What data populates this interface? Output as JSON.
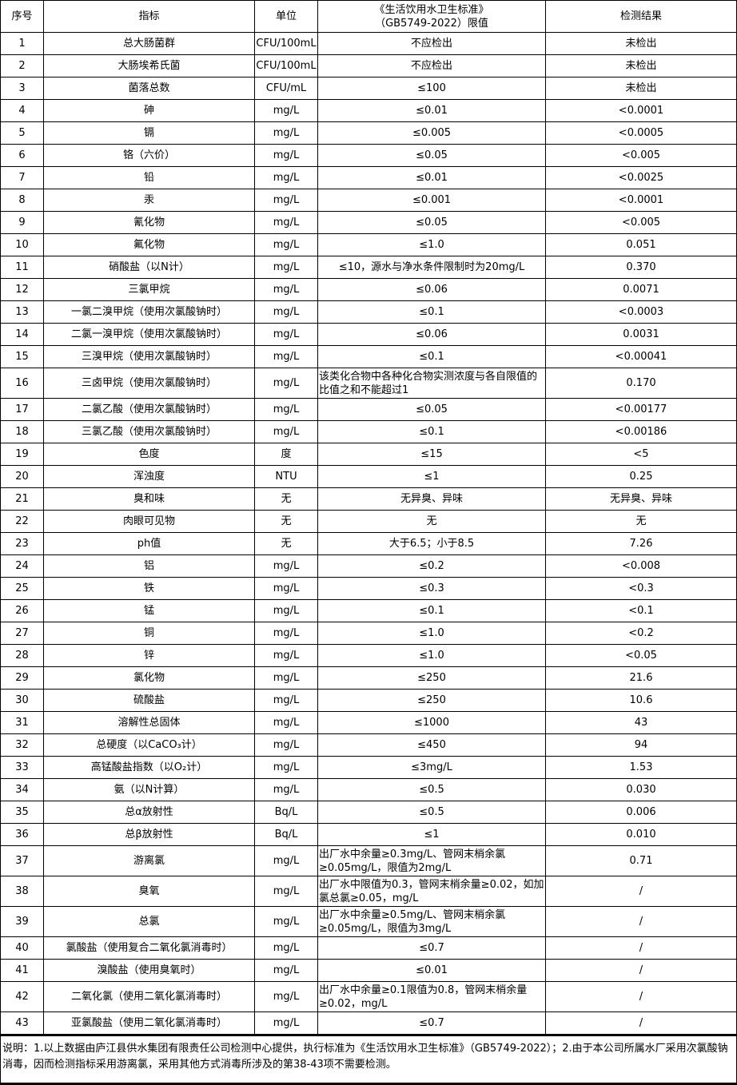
{
  "headers": [
    "序号",
    "指标",
    "单位",
    "《生活饮用水卫生标准》\n（GB5749-2022）限值",
    "检测结果"
  ],
  "rows": [
    [
      "1",
      "总大肠菌群",
      "CFU/100mL",
      "不应检出",
      "未检出"
    ],
    [
      "2",
      "大肠埃希氏菌",
      "CFU/100mL",
      "不应检出",
      "未检出"
    ],
    [
      "3",
      "菌落总数",
      "CFU/mL",
      "≤100",
      "未检出"
    ],
    [
      "4",
      "砷",
      "mg/L",
      "≤0.01",
      "<0.0001"
    ],
    [
      "5",
      "镉",
      "mg/L",
      "≤0.005",
      "<0.0005"
    ],
    [
      "6",
      "铬（六价）",
      "mg/L",
      "≤0.05",
      "<0.005"
    ],
    [
      "7",
      "铅",
      "mg/L",
      "≤0.01",
      "<0.0025"
    ],
    [
      "8",
      "汞",
      "mg/L",
      "≤0.001",
      "<0.0001"
    ],
    [
      "9",
      "氰化物",
      "mg/L",
      "≤0.05",
      "<0.005"
    ],
    [
      "10",
      "氟化物",
      "mg/L",
      "≤1.0",
      "0.051"
    ],
    [
      "11",
      "硝酸盐（以N计）",
      "mg/L",
      "≤10，源水与净水条件限制时为20mg/L",
      "0.370"
    ],
    [
      "12",
      "三氯甲烷",
      "mg/L",
      "≤0.06",
      "0.0071"
    ],
    [
      "13",
      "一氯二溴甲烷（使用次氯酸钠时）",
      "mg/L",
      "≤0.1",
      "<0.0003"
    ],
    [
      "14",
      "二氯一溴甲烷（使用次氯酸钠时）",
      "mg/L",
      "≤0.06",
      "0.0031"
    ],
    [
      "15",
      "三溴甲烷（使用次氯酸钠时）",
      "mg/L",
      "≤0.1",
      "<0.00041"
    ],
    [
      "16",
      "三卤甲烷（使用次氯酸钠时）",
      "mg/L",
      "该类化合物中各种化合物实测浓度与各自限值的比值之和不能超过1",
      "0.170"
    ],
    [
      "17",
      "二氯乙酸（使用次氯酸钠时）",
      "mg/L",
      "≤0.05",
      "<0.00177"
    ],
    [
      "18",
      "三氯乙酸（使用次氯酸钠时）",
      "mg/L",
      "≤0.1",
      "<0.00186"
    ],
    [
      "19",
      "色度",
      "度",
      "≤15",
      "<5"
    ],
    [
      "20",
      "浑浊度",
      "NTU",
      "≤1",
      "0.25"
    ],
    [
      "21",
      "臭和味",
      "无",
      "无异臭、异味",
      "无异臭、异味"
    ],
    [
      "22",
      "肉眼可见物",
      "无",
      "无",
      "无"
    ],
    [
      "23",
      "ph值",
      "无",
      "大于6.5；小于8.5",
      "7.26"
    ],
    [
      "24",
      "铝",
      "mg/L",
      "≤0.2",
      "<0.008"
    ],
    [
      "25",
      "铁",
      "mg/L",
      "≤0.3",
      "<0.3"
    ],
    [
      "26",
      "锰",
      "mg/L",
      "≤0.1",
      "<0.1"
    ],
    [
      "27",
      "铜",
      "mg/L",
      "≤1.0",
      "<0.2"
    ],
    [
      "28",
      "锌",
      "mg/L",
      "≤1.0",
      "<0.05"
    ],
    [
      "29",
      "氯化物",
      "mg/L",
      "≤250",
      "21.6"
    ],
    [
      "30",
      "硫酸盐",
      "mg/L",
      "≤250",
      "10.6"
    ],
    [
      "31",
      "溶解性总固体",
      "mg/L",
      "≤1000",
      "43"
    ],
    [
      "32",
      "总硬度（以CaCO₃计）",
      "mg/L",
      "≤450",
      "94"
    ],
    [
      "33",
      "高锰酸盐指数（以O₂计）",
      "mg/L",
      "≤3mg/L",
      "1.53"
    ],
    [
      "34",
      "氨（以N计算）",
      "mg/L",
      "≤0.5",
      "0.030"
    ],
    [
      "35",
      "总α放射性",
      "Bq/L",
      "≤0.5",
      "0.006"
    ],
    [
      "36",
      "总β放射性",
      "Bq/L",
      "≤1",
      "0.010"
    ],
    [
      "37",
      "游离氯",
      "mg/L",
      "出厂水中余量≥0.3mg/L、管网末梢余氯≥0.05mg/L，限值为2mg/L",
      "0.71"
    ],
    [
      "38",
      "臭氧",
      "mg/L",
      "出厂水中限值为0.3，管网末梢余量≥0.02，如加氯总氯≥0.05，mg/L",
      "/"
    ],
    [
      "39",
      "总氯",
      "mg/L",
      "出厂水中余量≥0.5mg/L、管网末梢余氯≥0.05mg/L，限值为3mg/L",
      "/"
    ],
    [
      "40",
      "氯酸盐（使用复合二氧化氯消毒时）",
      "mg/L",
      "≤0.7",
      "/"
    ],
    [
      "41",
      "溴酸盐（使用臭氧时）",
      "mg/L",
      "≤0.01",
      "/"
    ],
    [
      "42",
      "二氧化氯（使用二氧化氯消毒时）",
      "mg/L",
      "出厂水中余量≥0.1限值为0.8，管网末梢余量≥0.02，mg/L",
      "/"
    ],
    [
      "43",
      "亚氯酸盐（使用二氧化氯消毒时）",
      "mg/L",
      "≤0.7",
      "/"
    ]
  ],
  "note": "说明：1.以上数据由庐江县供水集团有限责任公司检测中心提供，执行标准为《生活饮用水卫生标准》（GB5749-2022）；2.由于本公司所属水厂采用次氯酸钠消毒，因而检测指标采用游离氯，采用其他方式消毒所涉及的第38-43项不需要检测。"
}
